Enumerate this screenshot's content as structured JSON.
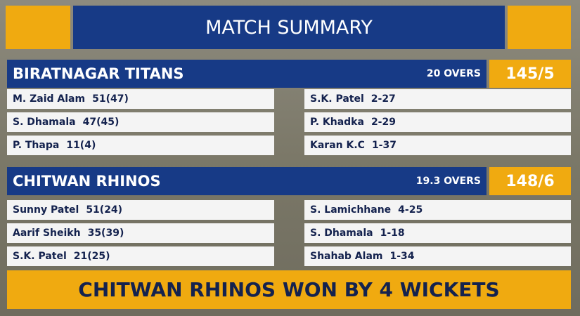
{
  "header": {
    "title": "MATCH SUMMARY"
  },
  "innings": [
    {
      "team": "BIRATNAGAR TITANS",
      "overs": "20 OVERS",
      "score": "145/5",
      "batting": [
        [
          "M. Zaid Alam",
          "51(47)"
        ],
        [
          "S. Dhamala",
          "47(45)"
        ],
        [
          "P. Thapa",
          "11(4)"
        ]
      ],
      "bowling": [
        [
          "S.K. Patel",
          "2-27"
        ],
        [
          "P. Khadka",
          "2-29"
        ],
        [
          "Karan K.C",
          "1-37"
        ]
      ]
    },
    {
      "team": "CHITWAN RHINOS",
      "overs": "19.3 OVERS",
      "score": "148/6",
      "batting": [
        [
          "Sunny Patel",
          "51(24)"
        ],
        [
          "Aarif Sheikh",
          "35(39)"
        ],
        [
          "S.K. Patel",
          "21(25)"
        ]
      ],
      "bowling": [
        [
          "S. Lamichhane",
          "4-25"
        ],
        [
          "S. Dhamala",
          "1-18"
        ],
        [
          "Shahab Alam",
          "1-34"
        ]
      ]
    }
  ],
  "result": "CHITWAN RHINOS WON BY 4 WICKETS"
}
